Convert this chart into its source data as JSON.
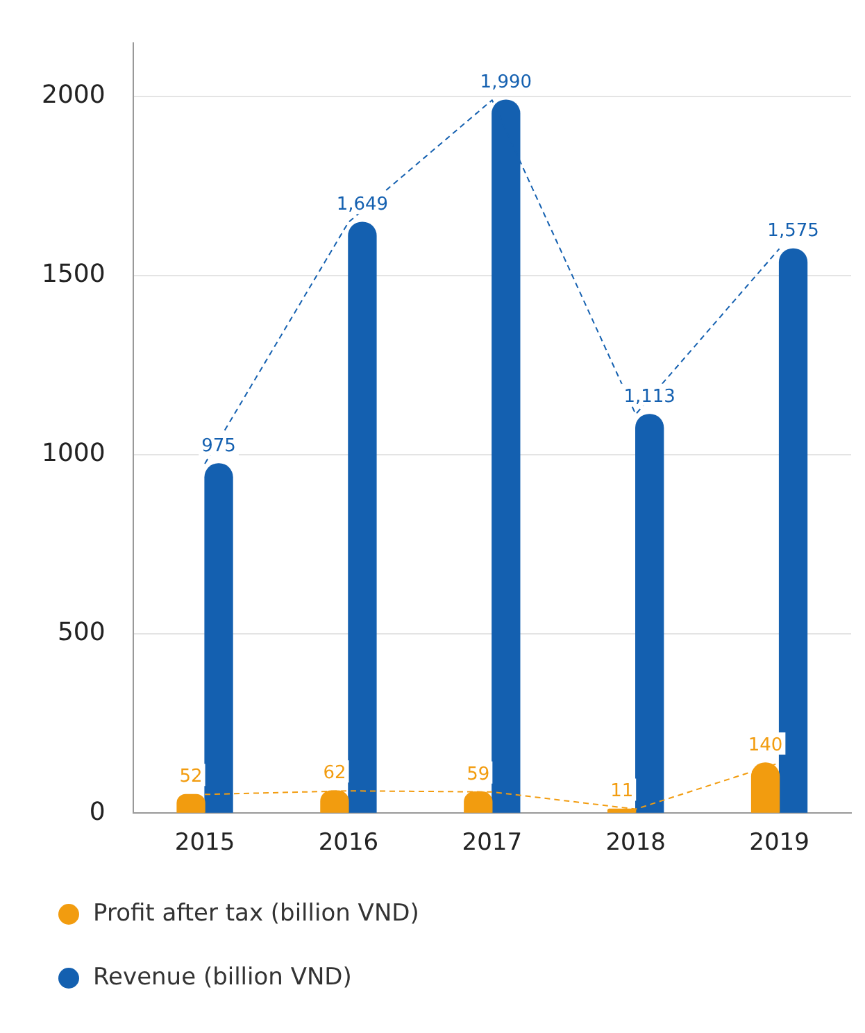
{
  "chart_data": {
    "type": "bar",
    "categories": [
      "2015",
      "2016",
      "2017",
      "2018",
      "2019"
    ],
    "series": [
      {
        "name": "Profit after tax (billion VND)",
        "color": "#f29c0f",
        "values": [
          52,
          62,
          59,
          11,
          140
        ],
        "value_labels": [
          "52",
          "62",
          "59",
          "11",
          "140"
        ]
      },
      {
        "name": "Revenue (billion VND)",
        "color": "#1460b0",
        "values": [
          975,
          1649,
          1990,
          1113,
          1575
        ],
        "value_labels": [
          "975",
          "1,649",
          "1,990",
          "1,113",
          "1,575"
        ]
      },
      {
        "type": "line",
        "color": "#f29c0f",
        "values": [
          52,
          62,
          59,
          11,
          140
        ],
        "line_style": "dashed",
        "marker": "none"
      },
      {
        "type": "line",
        "color": "#1460b0",
        "values": [
          975,
          1649,
          1990,
          1113,
          1575
        ],
        "line_style": "dashed",
        "marker": "none"
      }
    ],
    "ylim": [
      0,
      2150
    ],
    "yticks": [
      0,
      500,
      1000,
      1500,
      2000
    ],
    "grid": "y",
    "legend": "bottom"
  }
}
